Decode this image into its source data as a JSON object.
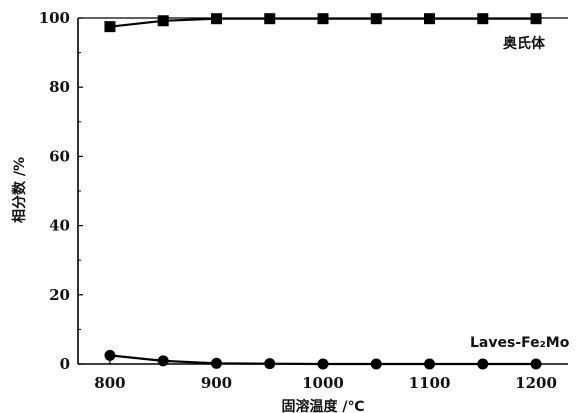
{
  "chart_data": {
    "type": "line",
    "xlabel": "固溶温度 /℃",
    "ylabel": "相分数 /%",
    "xlim": [
      770,
      1230
    ],
    "ylim": [
      0,
      100
    ],
    "x_ticks": [
      800,
      900,
      1000,
      1100,
      1200
    ],
    "x_tick_labels": [
      "800",
      "900",
      "1000",
      "1100",
      "1200"
    ],
    "y_ticks": [
      0,
      20,
      40,
      60,
      80,
      100
    ],
    "y_tick_labels": [
      "0",
      "20",
      "40",
      "60",
      "80",
      "100"
    ],
    "grid": false,
    "series": [
      {
        "name": "奥氏体",
        "marker": "square",
        "color": "#000000",
        "x": [
          800,
          850,
          900,
          950,
          1000,
          1050,
          1100,
          1150,
          1200
        ],
        "y": [
          97.5,
          99.2,
          99.8,
          99.8,
          99.8,
          99.8,
          99.8,
          99.8,
          99.8
        ]
      },
      {
        "name": "Laves-Fe₂Mo",
        "marker": "circle",
        "color": "#000000",
        "x": [
          800,
          850,
          900,
          950,
          1000,
          1050,
          1100,
          1150,
          1200
        ],
        "y": [
          2.5,
          0.9,
          0.2,
          0.1,
          0.0,
          0.0,
          0.0,
          0.0,
          0.0
        ]
      }
    ]
  }
}
